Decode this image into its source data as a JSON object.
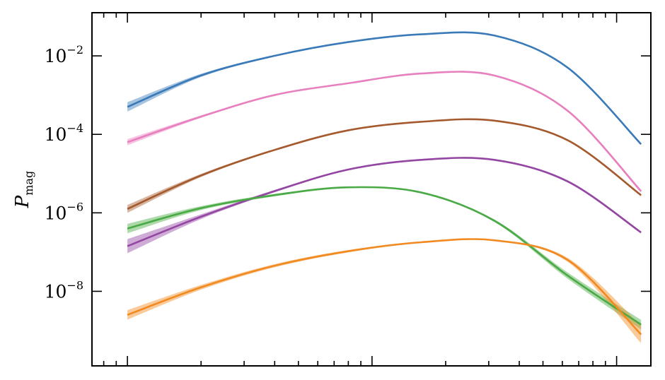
{
  "chart_data": {
    "type": "line",
    "title": "",
    "xlabel": "",
    "ylabel": "P",
    "ylabel_subscript": "mag",
    "y_scale": "log",
    "x_scale": "log",
    "ylim_exponent": [
      -9.9,
      -0.9
    ],
    "xlim_log10": [
      -0.145,
      2.14
    ],
    "y_ticks": [
      {
        "base": "10",
        "exp": "−2",
        "value_exp": -2
      },
      {
        "base": "10",
        "exp": "−4",
        "value_exp": -4
      },
      {
        "base": "10",
        "exp": "−6",
        "value_exp": -6
      },
      {
        "base": "10",
        "exp": "−8",
        "value_exp": -8
      }
    ],
    "x_major_ticks_log10": [
      0,
      1,
      2
    ],
    "grid": false,
    "legend": "none",
    "x_log10": [
      0,
      0.3,
      0.6,
      0.9,
      1.2,
      1.5,
      1.8,
      2.1
    ],
    "series": [
      {
        "color": "#3a7ab8",
        "y_exp": [
          -3.3,
          -2.5,
          -2.0,
          -1.65,
          -1.45,
          -1.48,
          -2.3,
          -4.25
        ],
        "band_exp": [
          0.12,
          0.04,
          0.02,
          0.01,
          0.01,
          0.01,
          0.02,
          0.02
        ]
      },
      {
        "color": "#e87fbe",
        "y_exp": [
          -4.2,
          -3.55,
          -3.0,
          -2.7,
          -2.45,
          -2.5,
          -3.4,
          -5.45
        ],
        "band_exp": [
          0.08,
          0.03,
          0.02,
          0.01,
          0.01,
          0.01,
          0.03,
          0.04
        ]
      },
      {
        "color": "#a55a2e",
        "y_exp": [
          -5.9,
          -5.05,
          -4.4,
          -3.9,
          -3.68,
          -3.65,
          -4.15,
          -5.55
        ],
        "band_exp": [
          0.1,
          0.04,
          0.02,
          0.02,
          0.01,
          0.01,
          0.02,
          0.03
        ]
      },
      {
        "color": "#9446a3",
        "y_exp": [
          -6.85,
          -6.1,
          -5.45,
          -4.9,
          -4.65,
          -4.65,
          -5.2,
          -6.5
        ],
        "band_exp": [
          0.18,
          0.06,
          0.03,
          0.02,
          0.02,
          0.01,
          0.03,
          0.03
        ]
      },
      {
        "color": "#4aaa45",
        "y_exp": [
          -6.4,
          -5.88,
          -5.55,
          -5.35,
          -5.48,
          -6.2,
          -7.6,
          -8.85
        ],
        "band_exp": [
          0.12,
          0.05,
          0.03,
          0.02,
          0.02,
          0.03,
          0.08,
          0.12
        ]
      },
      {
        "color": "#f18a20",
        "y_exp": [
          -8.6,
          -7.9,
          -7.35,
          -6.98,
          -6.75,
          -6.7,
          -7.2,
          -9.1
        ],
        "band_exp": [
          0.12,
          0.06,
          0.04,
          0.03,
          0.02,
          0.02,
          0.05,
          0.22
        ]
      }
    ]
  }
}
